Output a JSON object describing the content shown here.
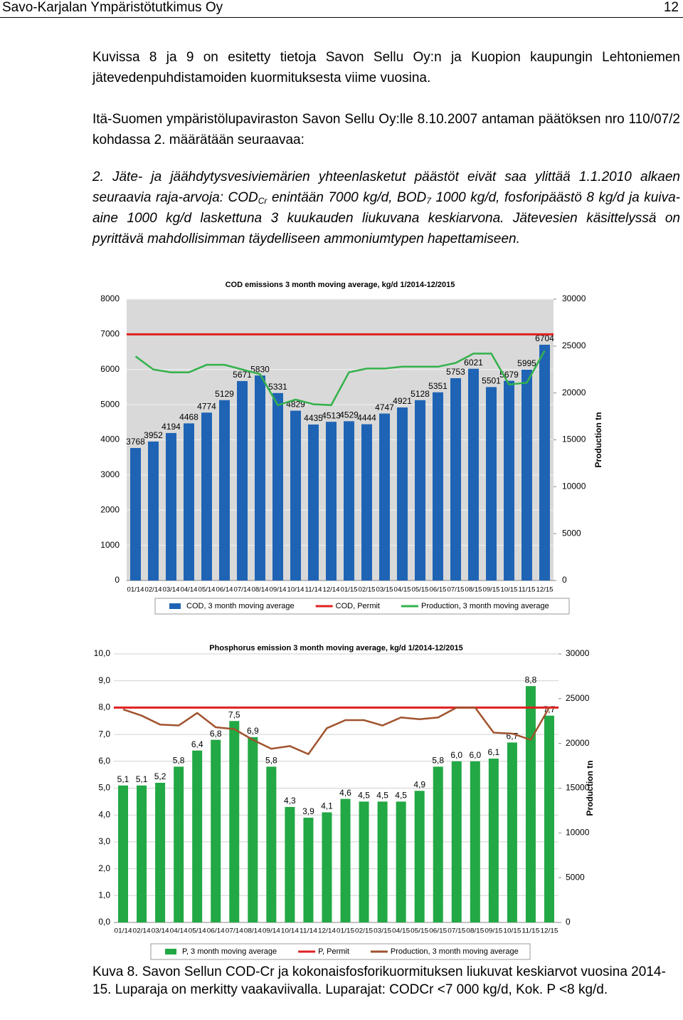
{
  "header": {
    "left": "Savo-Karjalan Ympäristötutkimus Oy",
    "page": "12"
  },
  "paragraphs": [
    [
      "Kuvissa 8 ja 9 on esitetty tietoja Savon Sellu Oy:n ja Kuopion kaupungin Lehtoniemen jätevedenpuhdistamoiden kuormituksesta viime vuosina."
    ],
    [
      "Itä-Suomen ympäristölupaviraston Savon Sellu Oy:lle 8.10.2007 antaman päätöksen nro 110/07/2 kohdassa 2. määrätään seuraavaa:"
    ],
    [
      "2. Jäte- ja jäähdytysvesiviemärien yhteenlasketut päästöt eivät saa ylittää 1.1.2010 alkaen seuraavia raja-arvoja: COD",
      "Cr",
      " enintään 7000 kg/d, BOD",
      "7",
      " 1000 kg/d, fosforipäästö 8 kg/d ja kuiva-aine 1000 kg/d laskettuna 3 kuukauden liukuvana keskiarvona. Jätevesien käsittelyssä on pyrittävä mahdollisimman täydelliseen ammoniumtypen hapettamiseen."
    ]
  ],
  "caption": "Kuva 8. Savon Sellun COD-Cr ja kokonaisfosforikuormituksen liukuvat keskiarvot vuosina 2014-15. Luparaja on merkitty vaakaviivalla. Luparajat: CODCr <7 000 kg/d, Kok. P <8 kg/d.",
  "chart_data": [
    {
      "type": "bar",
      "title": "COD emissions 3 month moving average, kg/d 1/2014-12/2015",
      "categories": [
        "01/14",
        "02/14",
        "03/14",
        "04/14",
        "05/14",
        "06/14",
        "07/14",
        "08/14",
        "09/14",
        "10/14",
        "11/14",
        "12/14",
        "01/15",
        "02/15",
        "03/15",
        "04/15",
        "05/15",
        "06/15",
        "07/15",
        "08/15",
        "09/15",
        "10/15",
        "11/15",
        "12/15"
      ],
      "series": [
        {
          "name": "COD, 3 month moving average",
          "type": "bar",
          "color": "#1f64b4",
          "values": [
            3768,
            3952,
            4194,
            4468,
            4774,
            5129,
            5671,
            5830,
            5331,
            4829,
            4435,
            4513,
            4529,
            4444,
            4747,
            4921,
            5128,
            5351,
            5753,
            6021,
            5501,
            5679,
            5995,
            6704
          ]
        },
        {
          "name": "COD, Permit",
          "type": "hline",
          "color": "#e02020",
          "value": 7000
        },
        {
          "name": "Production, 3 month moving average",
          "type": "line",
          "axis": "y2",
          "color": "#33b24a",
          "values": [
            23900,
            22500,
            22200,
            22200,
            23000,
            23000,
            22500,
            22000,
            18700,
            19300,
            18800,
            18700,
            22200,
            22600,
            22600,
            22800,
            22800,
            22800,
            23200,
            24200,
            24200,
            20900,
            21100,
            24500
          ]
        }
      ],
      "ylim": [
        0,
        8000
      ],
      "yticks": [
        0,
        1000,
        2000,
        3000,
        4000,
        5000,
        6000,
        7000,
        8000
      ],
      "y2lim": [
        0,
        30000
      ],
      "y2ticks": [
        0,
        5000,
        10000,
        15000,
        20000,
        25000,
        30000
      ],
      "y2label": "Production tn",
      "plot_background": "#d9d9d9",
      "grid": true
    },
    {
      "type": "bar",
      "title": "Phosphorus emission 3 month moving average, kg/d 1/2014-12/2015",
      "categories": [
        "01/14",
        "02/14",
        "03/14",
        "04/14",
        "05/14",
        "06/14",
        "07/14",
        "08/14",
        "09/14",
        "10/14",
        "11/14",
        "12/14",
        "01/15",
        "02/15",
        "03/15",
        "04/15",
        "05/15",
        "06/15",
        "07/15",
        "08/15",
        "09/15",
        "10/15",
        "11/15",
        "12/15"
      ],
      "series": [
        {
          "name": "P, 3 month moving average",
          "type": "bar",
          "color": "#22a844",
          "values": [
            5.1,
            5.1,
            5.2,
            5.8,
            6.4,
            6.8,
            7.5,
            6.9,
            5.8,
            4.3,
            3.9,
            4.1,
            4.6,
            4.5,
            4.5,
            4.5,
            4.9,
            5.8,
            6.0,
            6.0,
            6.1,
            6.7,
            8.8,
            7.7
          ],
          "value_labels": [
            "5,1",
            "5,1",
            "5,2",
            "5,8",
            "6,4",
            "6,8",
            "7,5",
            "6,9",
            "5,8",
            "4,3",
            "3,9",
            "4,1",
            "4,6",
            "4,5",
            "4,5",
            "4,5",
            "4,9",
            "5,8",
            "6,0",
            "6,0",
            "6,1",
            "6,7",
            "8,8",
            "7,7"
          ]
        },
        {
          "name": "P, Permit",
          "type": "hline",
          "color": "#e02020",
          "value": 8
        },
        {
          "name": "Production, 3 month moving average",
          "type": "line",
          "axis": "y2",
          "color": "#a0522d",
          "values": [
            23800,
            23100,
            22100,
            22000,
            23400,
            21800,
            21600,
            20400,
            19400,
            19700,
            18800,
            21700,
            22600,
            22600,
            22000,
            22900,
            22700,
            22900,
            24000,
            24000,
            21200,
            21100,
            20400,
            24000
          ]
        }
      ],
      "ylim": [
        0,
        10
      ],
      "yticks": [
        {
          "value": 0,
          "label": "0,0"
        },
        {
          "value": 1,
          "label": "1,0"
        },
        {
          "value": 2,
          "label": "2,0"
        },
        {
          "value": 3,
          "label": "3,0"
        },
        {
          "value": 4,
          "label": "4,0"
        },
        {
          "value": 5,
          "label": "5,0"
        },
        {
          "value": 6,
          "label": "6,0"
        },
        {
          "value": 7,
          "label": "7,0"
        },
        {
          "value": 8,
          "label": "8,0"
        },
        {
          "value": 9,
          "label": "9,0"
        },
        {
          "value": 10,
          "label": "10,0"
        }
      ],
      "y2lim": [
        0,
        30000
      ],
      "y2ticks": [
        0,
        5000,
        10000,
        15000,
        20000,
        25000,
        30000
      ],
      "y2label": "Production tn",
      "plot_background": "#ffffff",
      "grid": true
    }
  ]
}
